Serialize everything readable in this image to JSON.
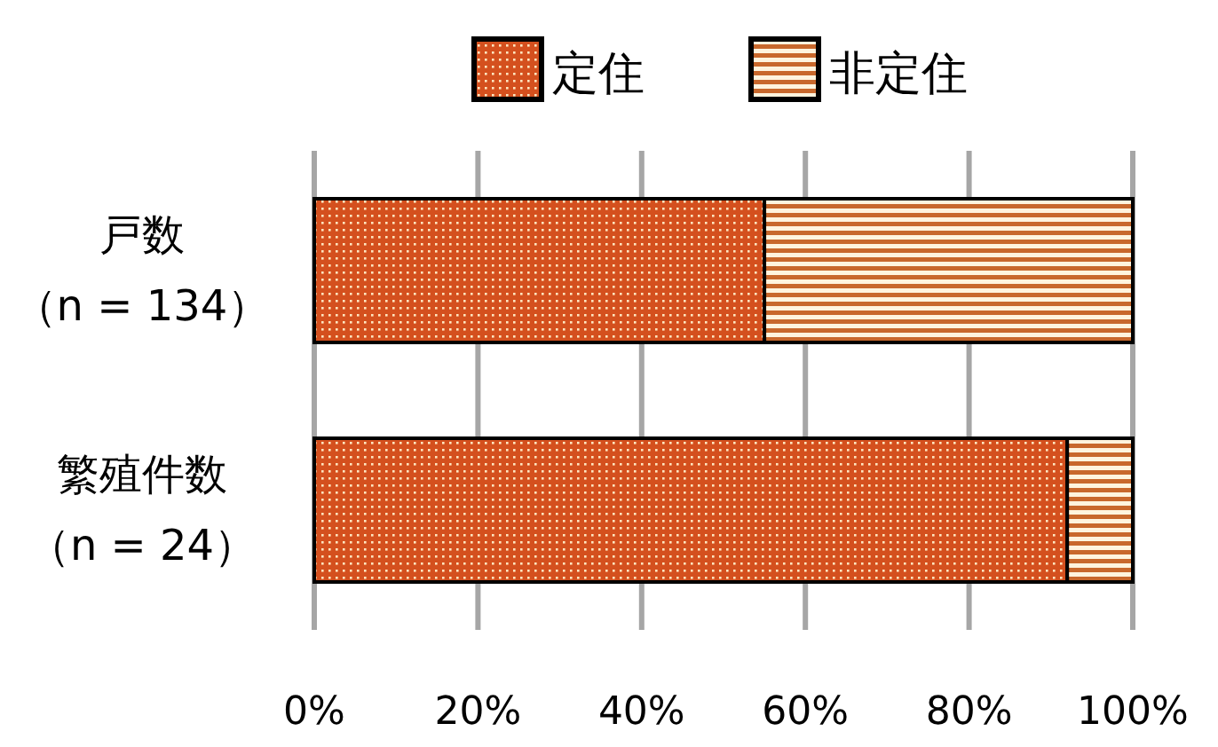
{
  "chart_data": {
    "type": "bar",
    "orientation": "horizontal",
    "stacked": true,
    "categories": [
      "戸数（n = 134）",
      "繁殖件数（n = 24）"
    ],
    "series": [
      {
        "name": "定住",
        "color": "#d4501e",
        "values": [
          55,
          92
        ]
      },
      {
        "name": "非定住",
        "color": "#c8682c",
        "values": [
          45,
          8
        ]
      }
    ],
    "xlim": [
      0,
      100
    ],
    "xticks": [
      {
        "value": 0,
        "label": "0%"
      },
      {
        "value": 20,
        "label": "20%"
      },
      {
        "value": 40,
        "label": "40%"
      },
      {
        "value": 60,
        "label": "60%"
      },
      {
        "value": 80,
        "label": "80%"
      },
      {
        "value": 100,
        "label": "100%"
      }
    ],
    "grid": "x",
    "legend": "top"
  }
}
